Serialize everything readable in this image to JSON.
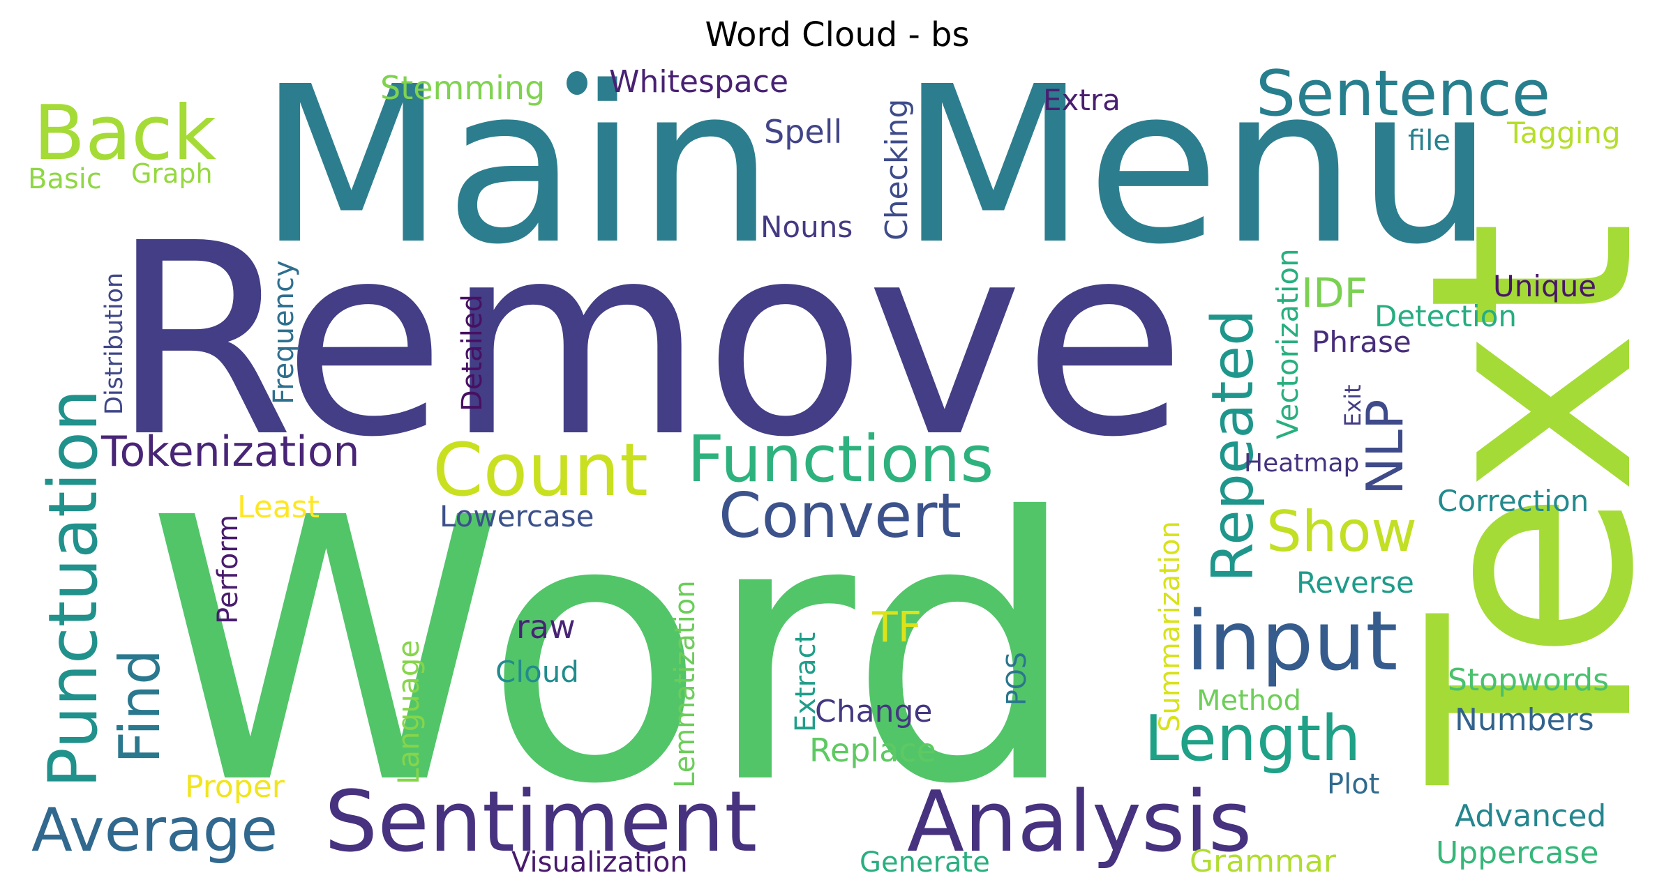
{
  "chart_data": {
    "type": "wordcloud",
    "title": "Word Cloud - bs",
    "words": [
      {
        "text": "Word",
        "weight": 100,
        "orientation": "horizontal",
        "color": "#52c569"
      },
      {
        "text": "Remove",
        "weight": 95,
        "orientation": "horizontal",
        "color": "#433e85"
      },
      {
        "text": "Main",
        "weight": 78,
        "orientation": "horizontal",
        "color": "#2c7e8e"
      },
      {
        "text": "Menu",
        "weight": 78,
        "orientation": "horizontal",
        "color": "#2c7e8e"
      },
      {
        "text": "Text",
        "weight": 75,
        "orientation": "vertical",
        "color": "#a5db36"
      },
      {
        "text": "Sentiment",
        "weight": 32,
        "orientation": "horizontal",
        "color": "#46327e"
      },
      {
        "text": "Analysis",
        "weight": 32,
        "orientation": "horizontal",
        "color": "#46327e"
      },
      {
        "text": "Back",
        "weight": 30,
        "orientation": "horizontal",
        "color": "#a5db36"
      },
      {
        "text": "Count",
        "weight": 28,
        "orientation": "horizontal",
        "color": "#c8e020"
      },
      {
        "text": "Functions",
        "weight": 28,
        "orientation": "horizontal",
        "color": "#2db27d"
      },
      {
        "text": "Sentence",
        "weight": 26,
        "orientation": "horizontal",
        "color": "#277f8e"
      },
      {
        "text": "input",
        "weight": 25,
        "orientation": "horizontal",
        "color": "#365c8d"
      },
      {
        "text": "Repeated",
        "weight": 24,
        "orientation": "vertical",
        "color": "#1f968b"
      },
      {
        "text": "Punctuation",
        "weight": 24,
        "orientation": "vertical",
        "color": "#21918c"
      },
      {
        "text": "Length",
        "weight": 22,
        "orientation": "horizontal",
        "color": "#1fa187"
      },
      {
        "text": "Convert",
        "weight": 22,
        "orientation": "horizontal",
        "color": "#3b528b"
      },
      {
        "text": "Find",
        "weight": 22,
        "orientation": "vertical",
        "color": "#2a788e"
      },
      {
        "text": "Average",
        "weight": 22,
        "orientation": "horizontal",
        "color": "#31688e"
      },
      {
        "text": "Show",
        "weight": 20,
        "orientation": "horizontal",
        "color": "#c2df23"
      },
      {
        "text": "NLP",
        "weight": 16,
        "orientation": "vertical",
        "color": "#3e4a89"
      },
      {
        "text": "Tokenization",
        "weight": 14,
        "orientation": "horizontal",
        "color": "#482576"
      },
      {
        "text": "TF",
        "weight": 13,
        "orientation": "horizontal",
        "color": "#dde318"
      },
      {
        "text": "IDF",
        "weight": 13,
        "orientation": "horizontal",
        "color": "#7ad151"
      },
      {
        "text": "Whitespace",
        "weight": 12,
        "orientation": "horizontal",
        "color": "#482173"
      },
      {
        "text": "Stemming",
        "weight": 11,
        "orientation": "horizontal",
        "color": "#7fd34e"
      },
      {
        "text": "Spell",
        "weight": 11,
        "orientation": "horizontal",
        "color": "#414487"
      },
      {
        "text": "Checking",
        "weight": 11,
        "orientation": "vertical",
        "color": "#3e4c8a"
      },
      {
        "text": "Nouns",
        "weight": 10,
        "orientation": "horizontal",
        "color": "#443a83"
      },
      {
        "text": "Extra",
        "weight": 10,
        "orientation": "horizontal",
        "color": "#481f70"
      },
      {
        "text": "Tagging",
        "weight": 10,
        "orientation": "horizontal",
        "color": "#b5de2b"
      },
      {
        "text": "file",
        "weight": 9,
        "orientation": "horizontal",
        "color": "#26828e"
      },
      {
        "text": "Basic",
        "weight": 10,
        "orientation": "horizontal",
        "color": "#8fd744"
      },
      {
        "text": "Graph",
        "weight": 9,
        "orientation": "horizontal",
        "color": "#95d840"
      },
      {
        "text": "Distribution",
        "weight": 9,
        "orientation": "vertical",
        "color": "#3f4788"
      },
      {
        "text": "Frequency",
        "weight": 10,
        "orientation": "vertical",
        "color": "#2e6f8e"
      },
      {
        "text": "Detailed",
        "weight": 10,
        "orientation": "vertical",
        "color": "#471063"
      },
      {
        "text": "Vectorization",
        "weight": 10,
        "orientation": "vertical",
        "color": "#29af7f"
      },
      {
        "text": "Unique",
        "weight": 10,
        "orientation": "horizontal",
        "color": "#481668"
      },
      {
        "text": "Detection",
        "weight": 10,
        "orientation": "horizontal",
        "color": "#26ad81"
      },
      {
        "text": "Phrase",
        "weight": 10,
        "orientation": "horizontal",
        "color": "#472d7b"
      },
      {
        "text": "Exit",
        "weight": 8,
        "orientation": "vertical",
        "color": "#433d84"
      },
      {
        "text": "Heatmap",
        "weight": 9,
        "orientation": "horizontal",
        "color": "#46337f"
      },
      {
        "text": "Correction",
        "weight": 10,
        "orientation": "horizontal",
        "color": "#238a8d"
      },
      {
        "text": "Least",
        "weight": 10,
        "orientation": "horizontal",
        "color": "#fde725"
      },
      {
        "text": "Perform",
        "weight": 10,
        "orientation": "vertical",
        "color": "#481b6d"
      },
      {
        "text": "Lowercase",
        "weight": 10,
        "orientation": "horizontal",
        "color": "#3b518b"
      },
      {
        "text": "Summarization",
        "weight": 10,
        "orientation": "vertical",
        "color": "#d8e219"
      },
      {
        "text": "Reverse",
        "weight": 10,
        "orientation": "horizontal",
        "color": "#1e9b8a"
      },
      {
        "text": "raw",
        "weight": 10,
        "orientation": "horizontal",
        "color": "#482475"
      },
      {
        "text": "Cloud",
        "weight": 10,
        "orientation": "horizontal",
        "color": "#228c8d"
      },
      {
        "text": "Lemmatization",
        "weight": 10,
        "orientation": "vertical",
        "color": "#6ccd5a"
      },
      {
        "text": "Extract",
        "weight": 10,
        "orientation": "vertical",
        "color": "#1f9e89"
      },
      {
        "text": "Change",
        "weight": 10,
        "orientation": "horizontal",
        "color": "#453781"
      },
      {
        "text": "POS",
        "weight": 10,
        "orientation": "vertical",
        "color": "#2a768e"
      },
      {
        "text": "Language",
        "weight": 10,
        "orientation": "vertical",
        "color": "#86d549"
      },
      {
        "text": "Method",
        "weight": 10,
        "orientation": "horizontal",
        "color": "#6ece58"
      },
      {
        "text": "Stopwords",
        "weight": 10,
        "orientation": "horizontal",
        "color": "#4ac16d"
      },
      {
        "text": "Numbers",
        "weight": 10,
        "orientation": "horizontal",
        "color": "#33638d"
      },
      {
        "text": "Replace",
        "weight": 10,
        "orientation": "horizontal",
        "color": "#5ec962"
      },
      {
        "text": "Proper",
        "weight": 10,
        "orientation": "horizontal",
        "color": "#f1e51d"
      },
      {
        "text": "Plot",
        "weight": 10,
        "orientation": "horizontal",
        "color": "#306a8e"
      },
      {
        "text": "Advanced",
        "weight": 10,
        "orientation": "horizontal",
        "color": "#24868e"
      },
      {
        "text": "Uppercase",
        "weight": 10,
        "orientation": "horizontal",
        "color": "#35b779"
      },
      {
        "text": "Visualization",
        "weight": 10,
        "orientation": "horizontal",
        "color": "#481a6c"
      },
      {
        "text": "Generate",
        "weight": 10,
        "orientation": "horizontal",
        "color": "#29af7f"
      },
      {
        "text": "Grammar",
        "weight": 10,
        "orientation": "horizontal",
        "color": "#b0dd2f"
      }
    ]
  }
}
